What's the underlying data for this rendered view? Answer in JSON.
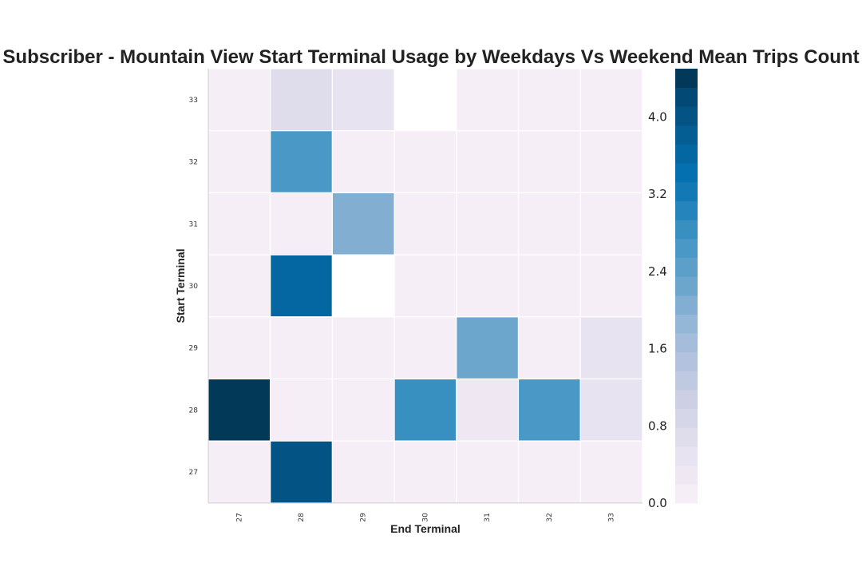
{
  "chart_data": {
    "type": "heatmap",
    "title": "Subscriber - Mountain View Start Terminal Usage by Weekdays Vs Weekend Mean Trips Count",
    "xlabel": "End Terminal",
    "ylabel": "Start Terminal",
    "x_categories": [
      "27",
      "28",
      "29",
      "30",
      "31",
      "32",
      "33"
    ],
    "y_categories": [
      "33",
      "32",
      "31",
      "30",
      "29",
      "28",
      "27"
    ],
    "values": [
      [
        0.0,
        0.6,
        0.4,
        null,
        0.0,
        0.0,
        0.0
      ],
      [
        0.0,
        2.7,
        0.0,
        0.0,
        0.0,
        0.0,
        0.0
      ],
      [
        0.0,
        0.0,
        2.1,
        0.0,
        0.0,
        0.0,
        0.0
      ],
      [
        0.0,
        3.6,
        null,
        0.0,
        0.0,
        0.0,
        0.0
      ],
      [
        0.0,
        0.0,
        0.0,
        0.0,
        2.3,
        0.0,
        0.4
      ],
      [
        4.5,
        0.0,
        0.0,
        2.9,
        0.2,
        2.7,
        0.5
      ],
      [
        0.0,
        4.1,
        0.0,
        0.0,
        0.0,
        0.0,
        0.0
      ]
    ],
    "colorbar": {
      "range": [
        0.0,
        4.5
      ],
      "ticks": [
        "0.0",
        "0.8",
        "1.6",
        "2.4",
        "3.2",
        "4.0"
      ],
      "levels": 20,
      "colors": [
        "#f5eef6",
        "#efe8f3",
        "#e7e3f0",
        "#dfddec",
        "#d6d6e9",
        "#cdd0e5",
        "#c0c9e2",
        "#b2c2df",
        "#a5bddb",
        "#94b6d7",
        "#82aed2",
        "#6da6cc",
        "#5c9fc8",
        "#4a98c5",
        "#3790c0",
        "#2584bb",
        "#1379b5",
        "#0570b0",
        "#0567a2",
        "#045e94",
        "#035485",
        "#034975",
        "#023858"
      ]
    },
    "grid": false
  }
}
